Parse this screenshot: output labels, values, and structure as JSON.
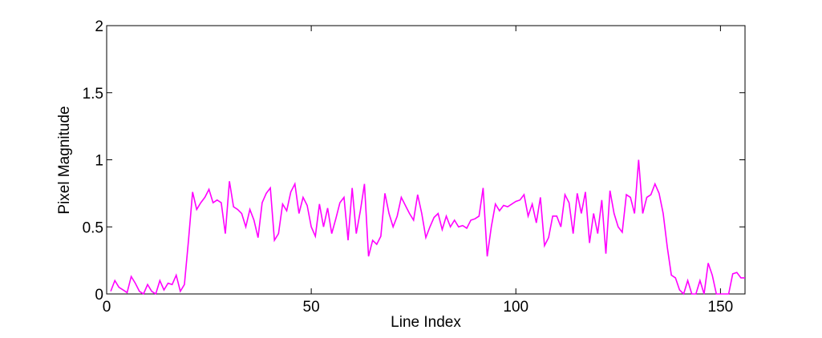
{
  "chart_data": {
    "type": "line",
    "xlabel": "Line Index",
    "ylabel": "Pixel Magnitude",
    "x": [
      1,
      2,
      3,
      4,
      5,
      6,
      7,
      8,
      9,
      10,
      11,
      12,
      13,
      14,
      15,
      16,
      17,
      18,
      19,
      20,
      21,
      22,
      23,
      24,
      25,
      26,
      27,
      28,
      29,
      30,
      31,
      32,
      33,
      34,
      35,
      36,
      37,
      38,
      39,
      40,
      41,
      42,
      43,
      44,
      45,
      46,
      47,
      48,
      49,
      50,
      51,
      52,
      53,
      54,
      55,
      56,
      57,
      58,
      59,
      60,
      61,
      62,
      63,
      64,
      65,
      66,
      67,
      68,
      69,
      70,
      71,
      72,
      73,
      74,
      75,
      76,
      77,
      78,
      79,
      80,
      81,
      82,
      83,
      84,
      85,
      86,
      87,
      88,
      89,
      90,
      91,
      92,
      93,
      94,
      95,
      96,
      97,
      98,
      99,
      100,
      101,
      102,
      103,
      104,
      105,
      106,
      107,
      108,
      109,
      110,
      111,
      112,
      113,
      114,
      115,
      116,
      117,
      118,
      119,
      120,
      121,
      122,
      123,
      124,
      125,
      126,
      127,
      128,
      129,
      130,
      131,
      132,
      133,
      134,
      135,
      136,
      137,
      138,
      139,
      140,
      141,
      142,
      143,
      144,
      145,
      146,
      147,
      148,
      149,
      150,
      151,
      152,
      153,
      154,
      155,
      156
    ],
    "series": [
      {
        "color": "#ff00ff",
        "values": [
          0.02,
          0.1,
          0.05,
          0.03,
          0.01,
          0.13,
          0.08,
          0.02,
          0.0,
          0.07,
          0.02,
          0.0,
          0.1,
          0.03,
          0.08,
          0.07,
          0.14,
          0.02,
          0.07,
          0.4,
          0.76,
          0.63,
          0.68,
          0.72,
          0.78,
          0.68,
          0.7,
          0.68,
          0.45,
          0.84,
          0.65,
          0.63,
          0.6,
          0.5,
          0.63,
          0.55,
          0.42,
          0.68,
          0.75,
          0.79,
          0.4,
          0.45,
          0.67,
          0.62,
          0.76,
          0.82,
          0.6,
          0.72,
          0.66,
          0.5,
          0.43,
          0.67,
          0.5,
          0.64,
          0.45,
          0.56,
          0.68,
          0.72,
          0.4,
          0.79,
          0.45,
          0.62,
          0.82,
          0.28,
          0.4,
          0.37,
          0.43,
          0.75,
          0.6,
          0.5,
          0.58,
          0.72,
          0.66,
          0.6,
          0.55,
          0.74,
          0.6,
          0.42,
          0.5,
          0.57,
          0.6,
          0.48,
          0.58,
          0.5,
          0.55,
          0.5,
          0.51,
          0.49,
          0.55,
          0.56,
          0.58,
          0.79,
          0.28,
          0.5,
          0.67,
          0.62,
          0.66,
          0.65,
          0.67,
          0.69,
          0.7,
          0.74,
          0.58,
          0.67,
          0.53,
          0.72,
          0.36,
          0.42,
          0.58,
          0.58,
          0.5,
          0.74,
          0.68,
          0.45,
          0.75,
          0.6,
          0.76,
          0.38,
          0.6,
          0.45,
          0.7,
          0.3,
          0.77,
          0.6,
          0.5,
          0.46,
          0.74,
          0.72,
          0.6,
          1.0,
          0.6,
          0.72,
          0.74,
          0.82,
          0.75,
          0.6,
          0.35,
          0.14,
          0.12,
          0.03,
          0.0,
          0.1,
          0.0,
          0.0,
          0.1,
          0.0,
          0.23,
          0.14,
          0.0,
          0.0,
          0.0,
          0.0,
          0.15,
          0.16,
          0.12,
          0.12
        ]
      }
    ],
    "xlim": [
      0,
      156
    ],
    "xticks": [
      0,
      50,
      100,
      150
    ],
    "ylim": [
      0,
      2
    ],
    "yticks": [
      0,
      0.5,
      1,
      1.5,
      2
    ]
  }
}
